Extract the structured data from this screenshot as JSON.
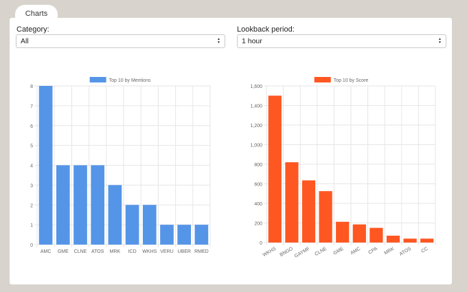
{
  "tab": {
    "label": "Charts"
  },
  "filters": {
    "category": {
      "label": "Category:",
      "value": "All"
    },
    "lookback": {
      "label": "Lookback period:",
      "value": "1 hour"
    }
  },
  "chart_data": [
    {
      "type": "bar",
      "legend": "Top 10 by Mentions",
      "color": "#5595e8",
      "categories": [
        "AMC",
        "GME",
        "CLNE",
        "ATOS",
        "MRK",
        "ICD",
        "WKHS",
        "VERU",
        "UBER",
        "RMED"
      ],
      "values": [
        8,
        4,
        4,
        4,
        3,
        2,
        2,
        1,
        1,
        1
      ],
      "ylim": [
        0,
        8
      ],
      "yticks": [
        0,
        1,
        2,
        3,
        4,
        5,
        6,
        7,
        8
      ],
      "ytick_labels": [
        "0",
        "1",
        "2",
        "3",
        "4",
        "5",
        "6",
        "7",
        "8"
      ],
      "grid": true,
      "legend_position": "top",
      "x_tick_rotation": 0
    },
    {
      "type": "bar",
      "legend": "Top 10 by Score",
      "color": "#ff5722",
      "categories": [
        "WKHS",
        "BNGO",
        "GAYMF",
        "CLNE",
        "GME",
        "AMC",
        "CPA",
        "MRK",
        "ATOS",
        "CC"
      ],
      "values": [
        1500,
        820,
        635,
        525,
        212,
        185,
        150,
        70,
        40,
        40
      ],
      "ylim": [
        0,
        1600
      ],
      "yticks": [
        0,
        200,
        400,
        600,
        800,
        1000,
        1200,
        1400,
        1600
      ],
      "ytick_labels": [
        "0",
        "200",
        "400",
        "600",
        "800",
        "1,000",
        "1,200",
        "1,400",
        "1,600"
      ],
      "grid": true,
      "legend_position": "top",
      "x_tick_rotation": -30
    }
  ]
}
